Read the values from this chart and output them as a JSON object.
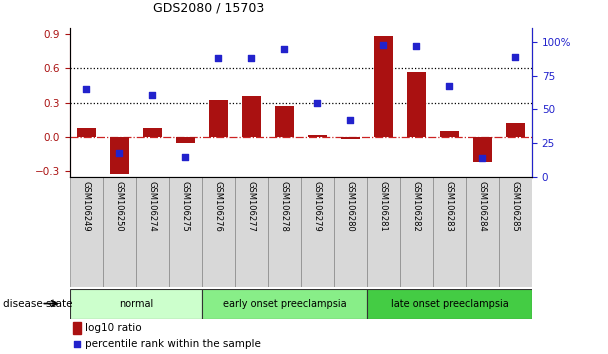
{
  "title": "GDS2080 / 15703",
  "samples": [
    "GSM106249",
    "GSM106250",
    "GSM106274",
    "GSM106275",
    "GSM106276",
    "GSM106277",
    "GSM106278",
    "GSM106279",
    "GSM106280",
    "GSM106281",
    "GSM106282",
    "GSM106283",
    "GSM106284",
    "GSM106285"
  ],
  "log10_ratio": [
    0.08,
    -0.32,
    0.08,
    -0.05,
    0.32,
    0.36,
    0.27,
    0.02,
    -0.02,
    0.88,
    0.57,
    0.05,
    -0.22,
    0.12
  ],
  "percentile_rank": [
    65,
    18,
    61,
    15,
    88,
    88,
    95,
    55,
    42,
    98,
    97,
    67,
    14,
    89
  ],
  "groups": [
    {
      "label": "normal",
      "start": 0,
      "end": 3,
      "color": "#ccffcc"
    },
    {
      "label": "early onset preeclampsia",
      "start": 4,
      "end": 8,
      "color": "#88ee88"
    },
    {
      "label": "late onset preeclampsia",
      "start": 9,
      "end": 13,
      "color": "#44cc44"
    }
  ],
  "bar_color": "#aa1111",
  "dot_color": "#2222cc",
  "ylim_left": [
    -0.35,
    0.95
  ],
  "ylim_right": [
    0,
    110
  ],
  "yticks_left": [
    -0.3,
    0.0,
    0.3,
    0.6,
    0.9
  ],
  "yticks_right": [
    0,
    25,
    50,
    75,
    100
  ],
  "hlines": [
    0.3,
    0.6
  ],
  "zero_line_color": "#cc2222",
  "background_color": "#ffffff",
  "disease_label": "disease state",
  "legend_log10": "log10 ratio",
  "legend_pct": "percentile rank within the sample",
  "fig_width": 6.08,
  "fig_height": 3.54
}
